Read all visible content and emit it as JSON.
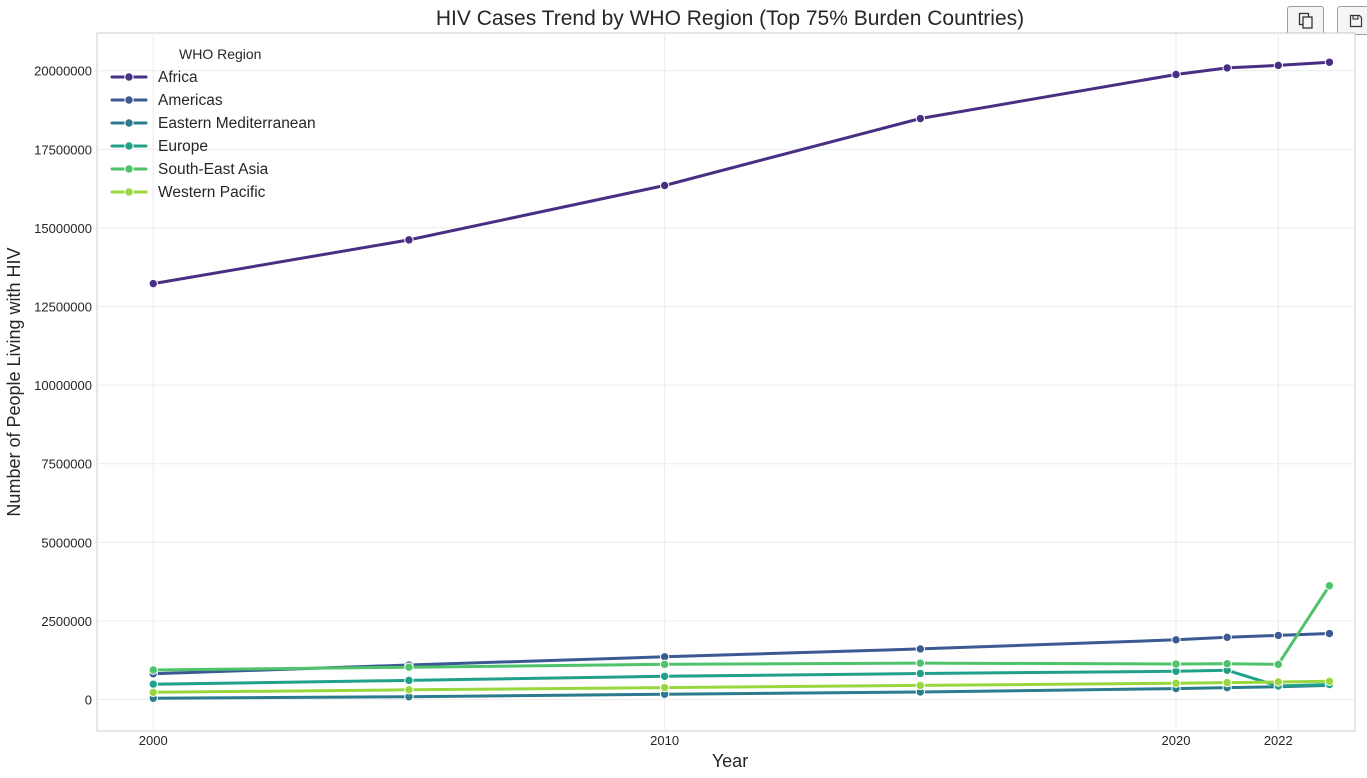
{
  "toolbar": {
    "copy_icon": "copy-icon",
    "save_icon": "save-icon"
  },
  "chart_data": {
    "type": "line",
    "title": "HIV Cases Trend by WHO Region (Top 75% Burden Countries)",
    "xlabel": "Year",
    "ylabel": "Number of People Living with HIV",
    "x_ticks": [
      2000,
      2010,
      2020,
      2022
    ],
    "y_ticks": [
      0,
      2500000,
      5000000,
      7500000,
      10000000,
      12500000,
      15000000,
      17500000,
      20000000
    ],
    "xlim": [
      1998.9,
      2023.5
    ],
    "ylim": [
      -1000000,
      21200000
    ],
    "grid": true,
    "legend": {
      "title": "WHO Region",
      "placement": "top-left"
    },
    "x": [
      2000,
      2005,
      2010,
      2015,
      2020,
      2021,
      2022,
      2023
    ],
    "series": [
      {
        "name": "Africa",
        "color": "#482f83",
        "values": [
          13230000,
          14620000,
          16350000,
          18480000,
          19880000,
          20090000,
          20170000,
          20270000
        ]
      },
      {
        "name": "Americas",
        "color": "#3b5a93",
        "values": [
          820000,
          1100000,
          1360000,
          1610000,
          1900000,
          1980000,
          2040000,
          2100000
        ]
      },
      {
        "name": "Eastern Mediterranean",
        "color": "#2a7b8e",
        "values": [
          40000,
          90000,
          170000,
          240000,
          350000,
          380000,
          410000,
          450000
        ]
      },
      {
        "name": "Europe",
        "color": "#21a089",
        "values": [
          490000,
          610000,
          740000,
          830000,
          900000,
          930000,
          430000,
          480000
        ]
      },
      {
        "name": "South-East Asia",
        "color": "#4fc36b",
        "values": [
          940000,
          1030000,
          1120000,
          1160000,
          1130000,
          1140000,
          1120000,
          3620000
        ]
      },
      {
        "name": "Western Pacific",
        "color": "#98d83e",
        "values": [
          230000,
          310000,
          380000,
          450000,
          520000,
          540000,
          560000,
          580000
        ]
      }
    ]
  }
}
